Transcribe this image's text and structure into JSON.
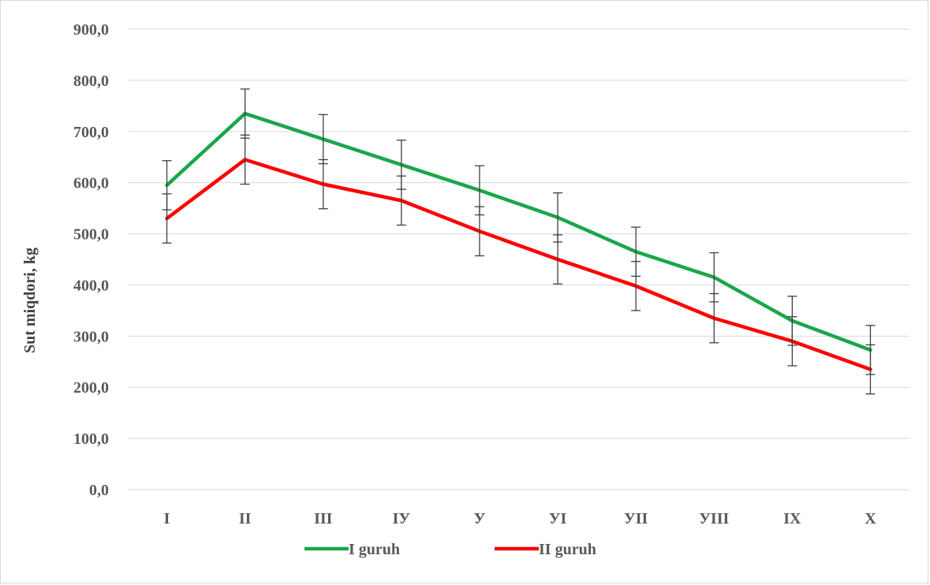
{
  "chart_data": {
    "type": "line",
    "title": "",
    "xlabel": "",
    "ylabel": "Sut miqdori, kg",
    "categories": [
      "I",
      "II",
      "III",
      "IУ",
      "У",
      "УI",
      "УII",
      "УIII",
      "IX",
      "X"
    ],
    "ylim": [
      0,
      900
    ],
    "yticks": [
      "0,0",
      "100,0",
      "200,0",
      "300,0",
      "400,0",
      "500,0",
      "600,0",
      "700,0",
      "800,0",
      "900,0"
    ],
    "ytick_values": [
      0,
      100,
      200,
      300,
      400,
      500,
      600,
      700,
      800,
      900
    ],
    "grid": true,
    "legend": "bottom",
    "error_bar": 48,
    "series": [
      {
        "name": "I guruh",
        "color": "#1aa64a",
        "values": [
          595,
          735,
          685,
          635,
          585,
          532,
          465,
          415,
          330,
          273
        ]
      },
      {
        "name": "II guruh",
        "color": "#ff0000",
        "values": [
          530,
          645,
          597,
          565,
          505,
          450,
          398,
          335,
          290,
          235
        ]
      }
    ]
  }
}
